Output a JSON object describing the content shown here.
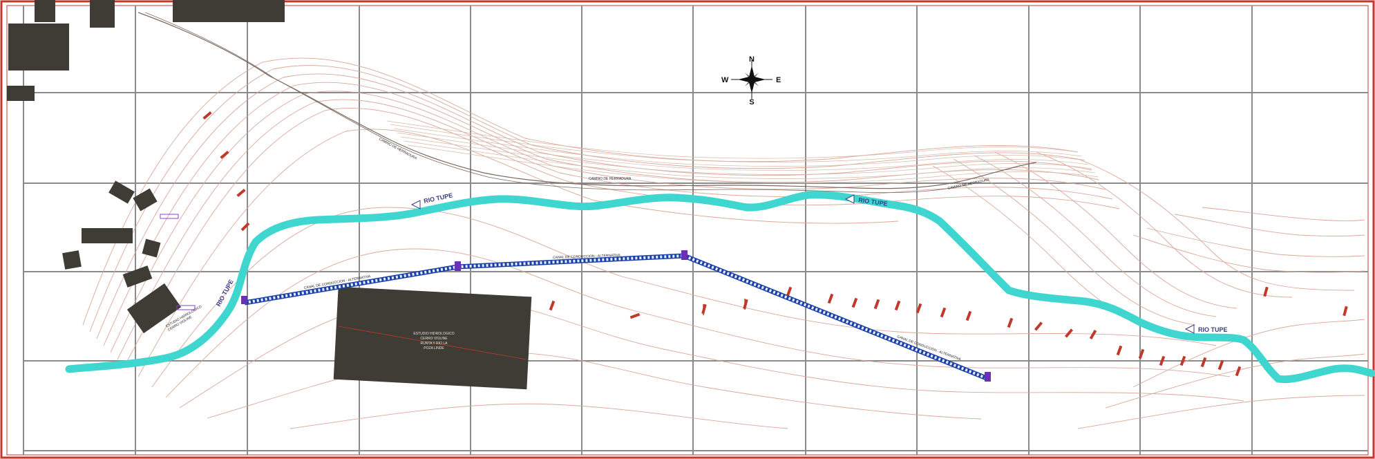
{
  "compass": {
    "north": "N",
    "south": "S",
    "east": "E",
    "west": "W"
  },
  "labels": {
    "river_name": "RIO TUPE",
    "road_left": "CAMINO DE HERRADURA",
    "road_mid": "CAMINO DE HERRADURA",
    "road_right": "CAMINO DE HERRADURA",
    "pipe_left": "CANAL DE CONDUCCION - ALTERNATIVA",
    "pipe_mid": "CANAL DE CONDUCCION - ALTERNATIVA",
    "pipe_right": "CANAL DE CONDUCCION - ALTERNATIVA",
    "building_note": [
      "ESTUDIO HIDROLOGICO",
      "CERRO VIOLINE",
      "RUNTA Y RIO LA",
      "POZA LINDE"
    ],
    "house_note": [
      "ESTUDIO HIDROLOGICO",
      "CERRO VIOLINE"
    ]
  },
  "colors": {
    "frame": "#c0392b",
    "grid": "#8a8a8a",
    "river": "#3fd6d0",
    "contour": "#d9a898",
    "contour_index": "#c97a6a",
    "pipe": "#1a3fa8",
    "building": "#3e3c34",
    "annotation": "#c0392b"
  }
}
